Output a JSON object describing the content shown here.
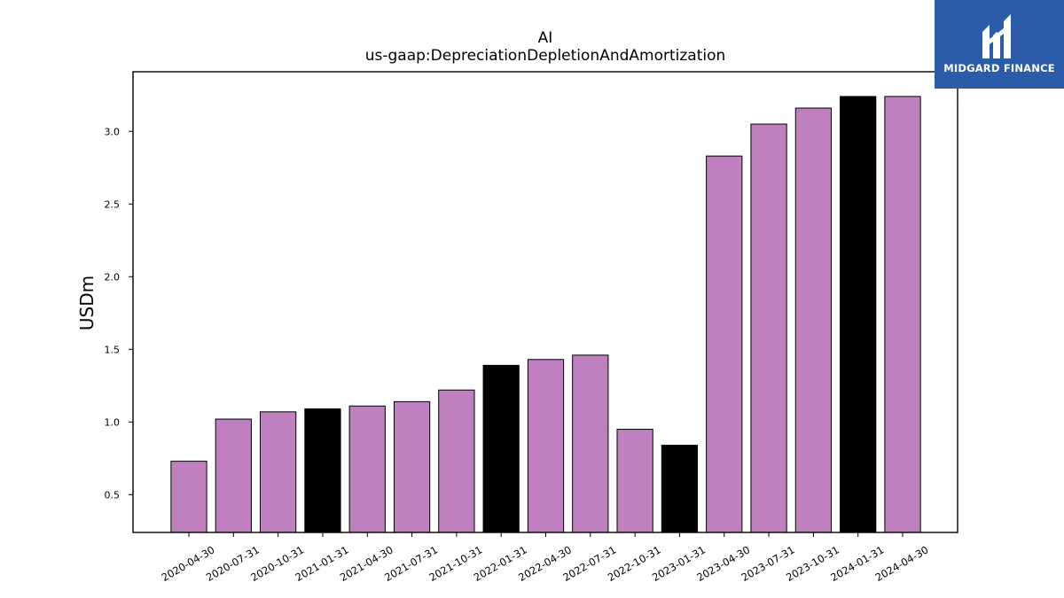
{
  "chart_data": {
    "type": "bar",
    "title": "AI",
    "subtitle": "us-gaap:DepreciationDepletionAndAmortization",
    "xlabel": "",
    "ylabel": "USDm",
    "categories": [
      "2020-04-30",
      "2020-07-31",
      "2020-10-31",
      "2021-01-31",
      "2021-04-30",
      "2021-07-31",
      "2021-10-31",
      "2022-01-31",
      "2022-04-30",
      "2022-07-31",
      "2022-10-31",
      "2023-01-31",
      "2023-04-30",
      "2023-07-31",
      "2023-10-31",
      "2024-01-31",
      "2024-04-30"
    ],
    "values": [
      0.73,
      1.02,
      1.07,
      1.09,
      1.11,
      1.14,
      1.22,
      1.39,
      1.43,
      1.46,
      0.95,
      0.84,
      2.83,
      3.05,
      3.16,
      3.24,
      3.24
    ],
    "bar_colors": [
      "#bf80bf",
      "#bf80bf",
      "#bf80bf",
      "#000000",
      "#bf80bf",
      "#bf80bf",
      "#bf80bf",
      "#000000",
      "#bf80bf",
      "#bf80bf",
      "#bf80bf",
      "#000000",
      "#bf80bf",
      "#bf80bf",
      "#bf80bf",
      "#000000",
      "#bf80bf"
    ],
    "bar_edge_color": "#000000",
    "ylim": [
      0.24,
      3.41
    ],
    "yticks": [
      0.5,
      1.0,
      1.5,
      2.0,
      2.5,
      3.0
    ],
    "ytick_labels": [
      "0.5",
      "1.0",
      "1.5",
      "2.0",
      "2.5",
      "3.0"
    ],
    "grid": false,
    "legend": "none"
  },
  "logo": {
    "text": "MIDGARD FINANCE",
    "background_color": "#2a5caa",
    "icon": "midgard-logo-icon"
  }
}
